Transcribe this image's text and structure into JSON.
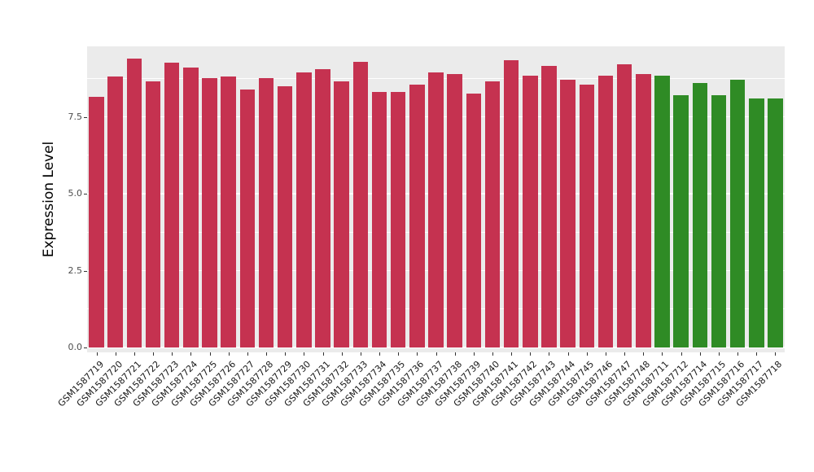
{
  "chart_data": {
    "type": "bar",
    "title": "",
    "xlabel": "",
    "ylabel": "Expression Level",
    "ylim": [
      0,
      9.75
    ],
    "yticks": [
      0.0,
      2.5,
      5.0,
      7.5
    ],
    "ytick_labels": [
      "0.0",
      "2.5",
      "5.0",
      "7.5"
    ],
    "minor_ticks": [
      1.25,
      3.75,
      6.25,
      8.75
    ],
    "grid": true,
    "legend": "none",
    "panel_background": "#EBEBEB",
    "categories": [
      "GSM1587719",
      "GSM1587720",
      "GSM1587721",
      "GSM1587722",
      "GSM1587723",
      "GSM1587724",
      "GSM1587725",
      "GSM1587726",
      "GSM1587727",
      "GSM1587728",
      "GSM1587729",
      "GSM1587730",
      "GSM1587731",
      "GSM1587732",
      "GSM1587733",
      "GSM1587734",
      "GSM1587735",
      "GSM1587736",
      "GSM1587737",
      "GSM1587738",
      "GSM1587739",
      "GSM1587740",
      "GSM1587741",
      "GSM1587742",
      "GSM1587743",
      "GSM1587744",
      "GSM1587745",
      "GSM1587746",
      "GSM1587747",
      "GSM1587748",
      "GSM1587711",
      "GSM1587712",
      "GSM1587714",
      "GSM1587715",
      "GSM1587716",
      "GSM1587717",
      "GSM1587718"
    ],
    "values": [
      8.15,
      8.8,
      9.4,
      8.65,
      9.25,
      9.1,
      8.75,
      8.8,
      8.4,
      8.75,
      8.5,
      8.95,
      9.05,
      8.65,
      9.3,
      8.3,
      8.3,
      8.55,
      8.95,
      8.9,
      8.25,
      8.65,
      9.35,
      8.85,
      9.15,
      8.7,
      8.55,
      8.85,
      9.2,
      8.9,
      8.85,
      8.2,
      8.6,
      8.2,
      8.7,
      8.1,
      8.1
    ],
    "groups": [
      "red",
      "red",
      "red",
      "red",
      "red",
      "red",
      "red",
      "red",
      "red",
      "red",
      "red",
      "red",
      "red",
      "red",
      "red",
      "red",
      "red",
      "red",
      "red",
      "red",
      "red",
      "red",
      "red",
      "red",
      "red",
      "red",
      "red",
      "red",
      "red",
      "red",
      "green",
      "green",
      "green",
      "green",
      "green",
      "green",
      "green"
    ],
    "colors": {
      "red": "#C53250",
      "green": "#2F8B25"
    }
  }
}
